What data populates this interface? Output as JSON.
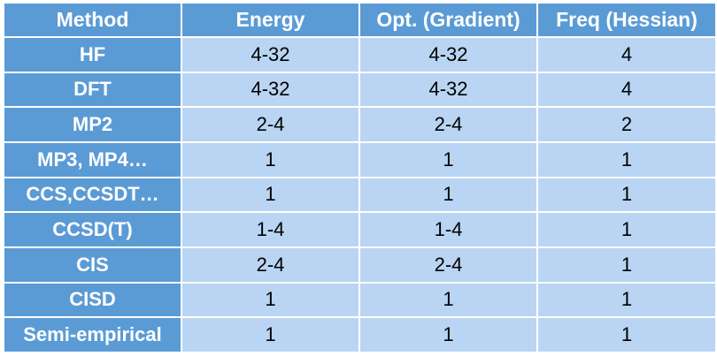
{
  "headers": [
    "Method",
    "Energy",
    "Opt. (Gradient)",
    "Freq (Hessian)"
  ],
  "rows": [
    {
      "method": "HF",
      "energy": "4-32",
      "opt": "4-32",
      "freq": "4"
    },
    {
      "method": "DFT",
      "energy": "4-32",
      "opt": "4-32",
      "freq": "4"
    },
    {
      "method": "MP2",
      "energy": "2-4",
      "opt": "2-4",
      "freq": "2"
    },
    {
      "method": "MP3, MP4…",
      "energy": "1",
      "opt": "1",
      "freq": "1"
    },
    {
      "method": "CCS,CCSDT…",
      "energy": "1",
      "opt": "1",
      "freq": "1"
    },
    {
      "method": "CCSD(T)",
      "energy": "1-4",
      "opt": "1-4",
      "freq": "1"
    },
    {
      "method": "CIS",
      "energy": "2-4",
      "opt": "2-4",
      "freq": "1"
    },
    {
      "method": "CISD",
      "energy": "1",
      "opt": "1",
      "freq": "1"
    },
    {
      "method": "Semi-empirical",
      "energy": "1",
      "opt": "1",
      "freq": "1"
    }
  ],
  "colors": {
    "header_bg": "#5b9bd5",
    "cell_bg": "#b9d5f3",
    "header_text": "#ffffff",
    "cell_text": "#000000"
  }
}
